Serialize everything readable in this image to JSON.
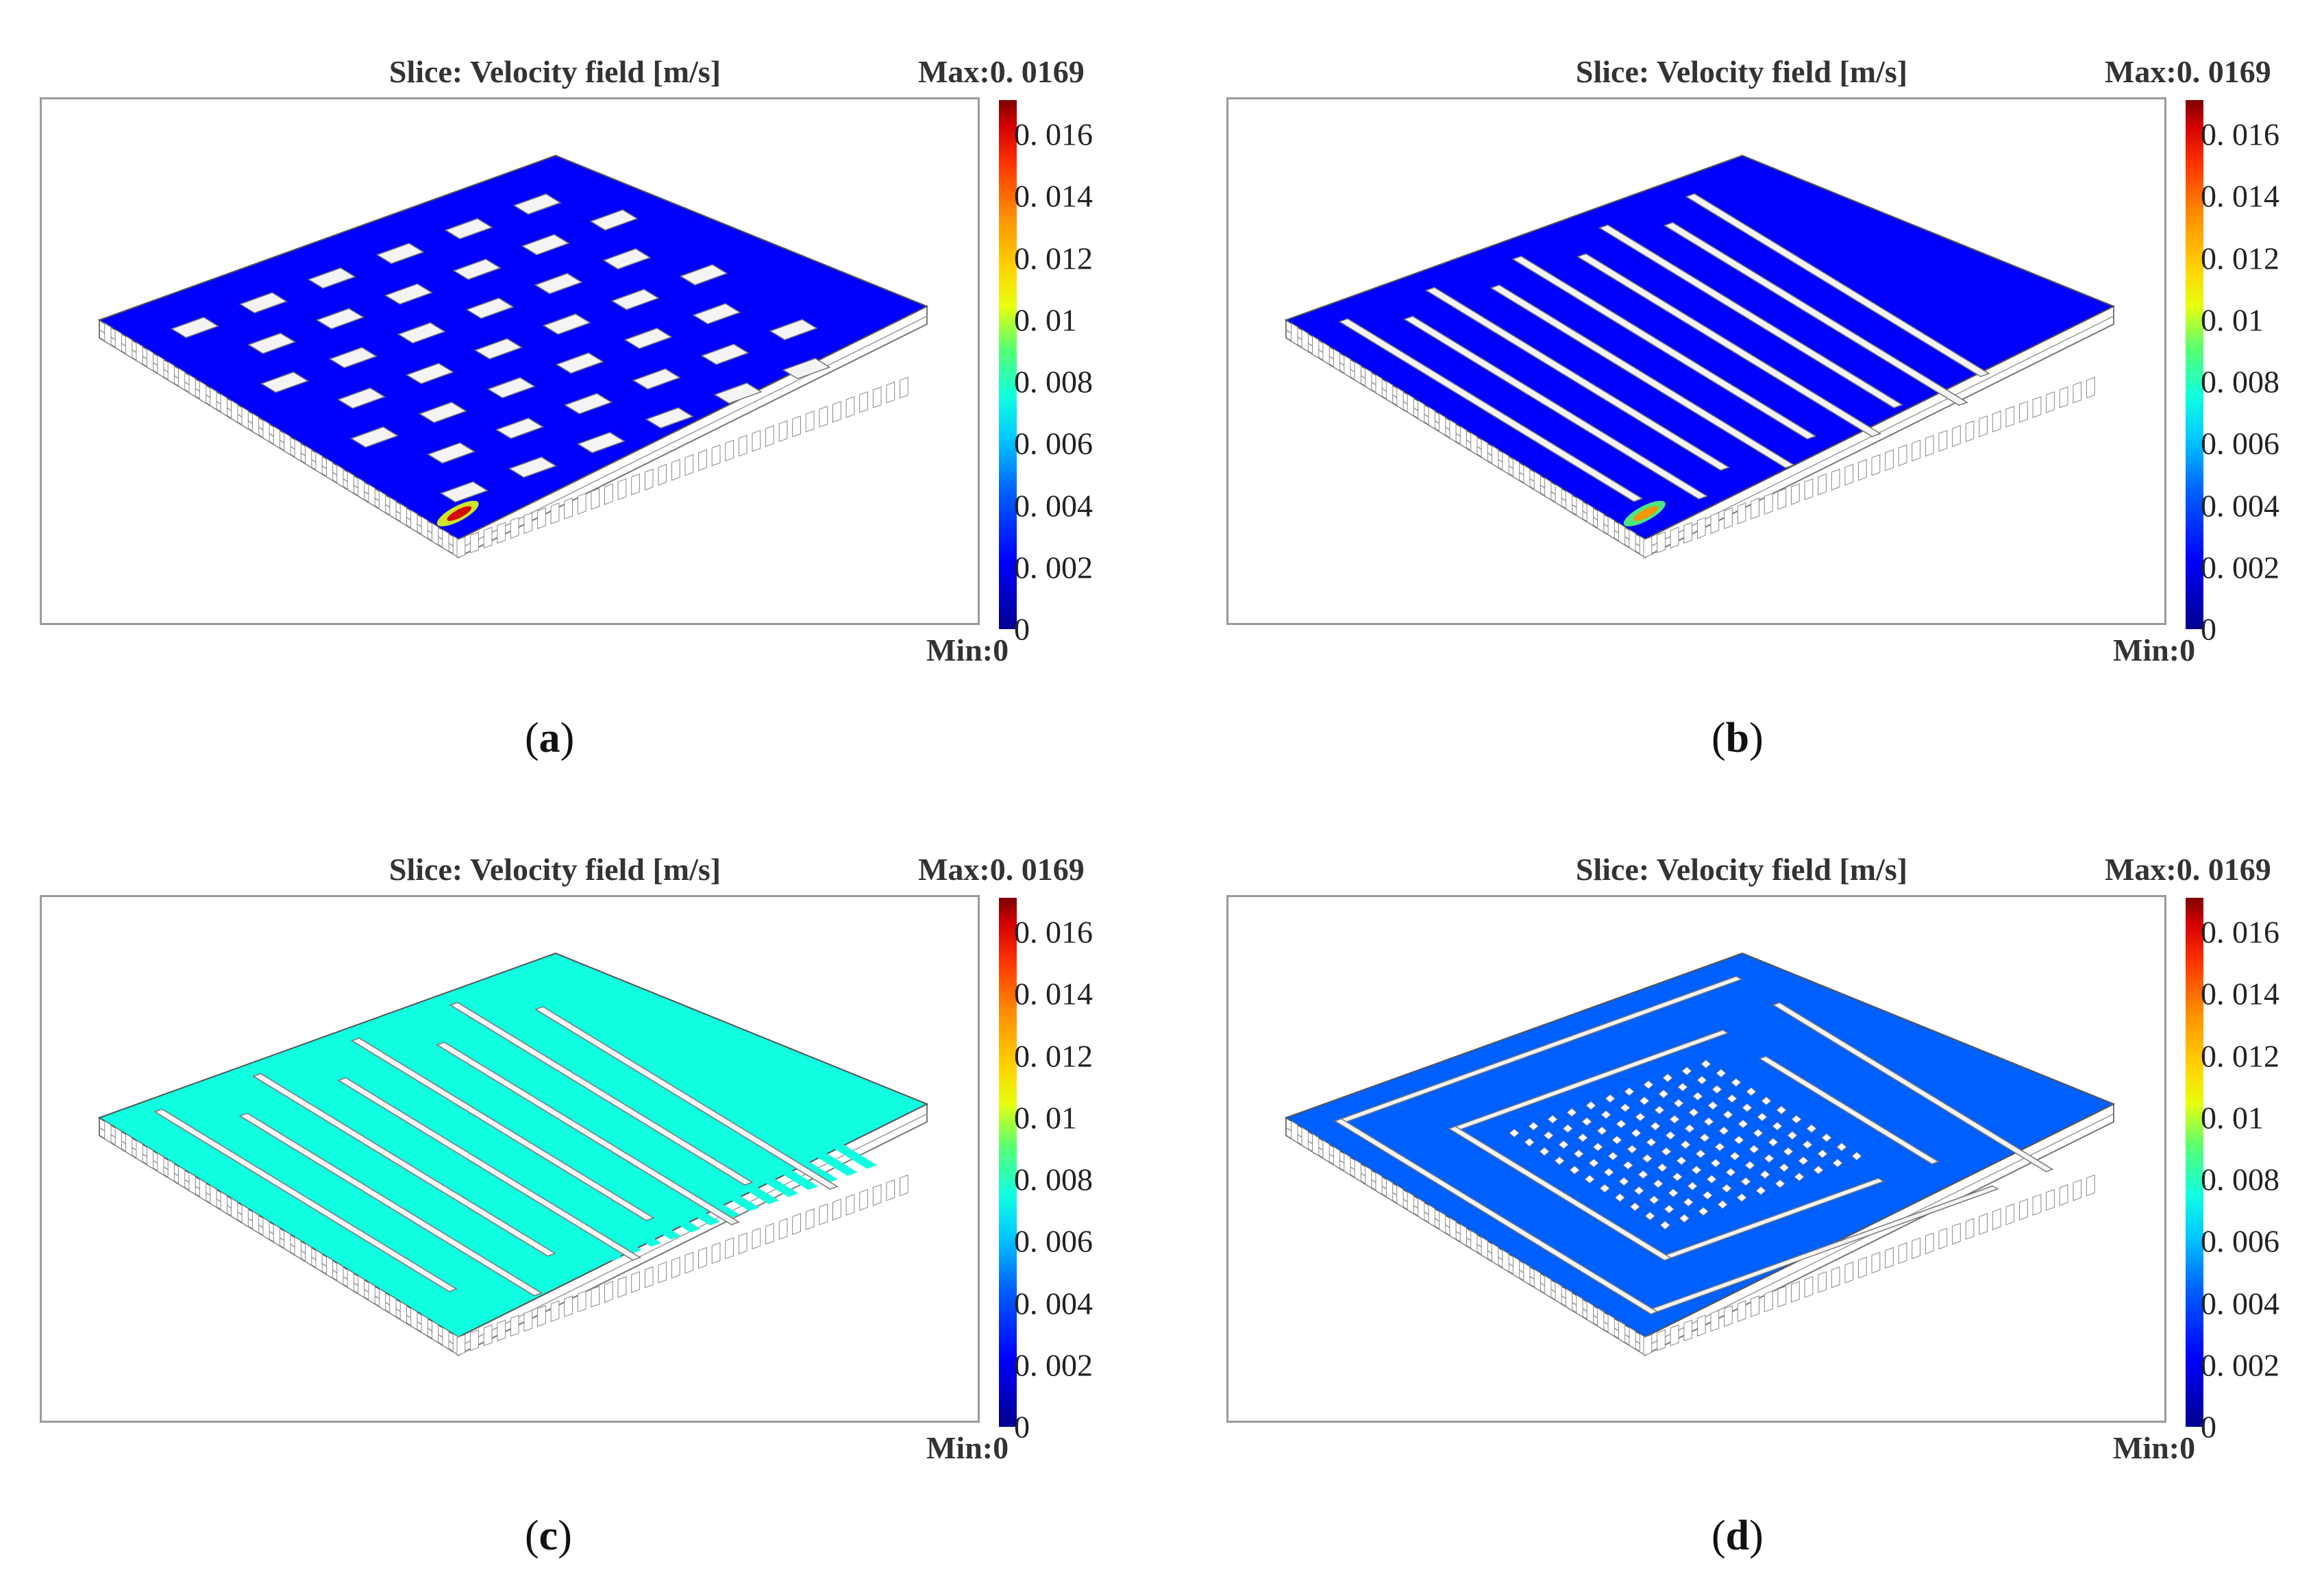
{
  "panels": [
    {
      "id": "a",
      "title": "Slice: Velocity field [m/s]",
      "max_label": "Max:0. 0169",
      "min_label": "Min:0",
      "colorbar_ticks": [
        "0. 016",
        "0. 014",
        "0. 012",
        "0. 01",
        "0. 008",
        "0. 006",
        "0. 004",
        "0. 002",
        "0"
      ],
      "caption_open": "(",
      "caption_letter": "a",
      "caption_close": ")",
      "layout_pattern": "staggered-pillars",
      "channel_velocity_fraction": 0.12,
      "hotspot": "inlet-high"
    },
    {
      "id": "b",
      "title": "Slice: Velocity field [m/s]",
      "max_label": "Max:0. 0169",
      "min_label": "Min:0",
      "colorbar_ticks": [
        "0. 016",
        "0. 014",
        "0. 012",
        "0. 01",
        "0. 008",
        "0. 006",
        "0. 004",
        "0. 002",
        "0"
      ],
      "caption_open": "(",
      "caption_letter": "b",
      "caption_close": ")",
      "layout_pattern": "interdigitated-ribs",
      "channel_velocity_fraction": 0.1,
      "hotspot": "inlet-medium"
    },
    {
      "id": "c",
      "title": "Slice: Velocity field [m/s]",
      "max_label": "Max:0. 0169",
      "min_label": "Min:0",
      "colorbar_ticks": [
        "0. 016",
        "0. 014",
        "0. 012",
        "0. 01",
        "0. 008",
        "0. 006",
        "0. 004",
        "0. 002",
        "0"
      ],
      "caption_open": "(",
      "caption_letter": "c",
      "caption_close": ")",
      "layout_pattern": "multi-serpentine",
      "channel_velocity_fraction": 0.33,
      "hotspot": "none"
    },
    {
      "id": "d",
      "title": "Slice: Velocity field [m/s]",
      "max_label": "Max:0. 0169",
      "min_label": "Min:0",
      "colorbar_ticks": [
        "0. 016",
        "0. 014",
        "0. 012",
        "0. 01",
        "0. 008",
        "0. 006",
        "0. 004",
        "0. 002",
        "0"
      ],
      "caption_open": "(",
      "caption_letter": "d",
      "caption_close": ")",
      "layout_pattern": "spiral-with-pins",
      "channel_velocity_fraction": 0.16,
      "hotspot": "none"
    }
  ],
  "colorbar": {
    "min": 0,
    "max": 0.0169,
    "colors": [
      "#00008f",
      "#0000ff",
      "#0060ff",
      "#00c8ff",
      "#10ffe0",
      "#58ff70",
      "#e6ff10",
      "#ffd400",
      "#ff9000",
      "#ff3300",
      "#d50000",
      "#800000"
    ]
  }
}
